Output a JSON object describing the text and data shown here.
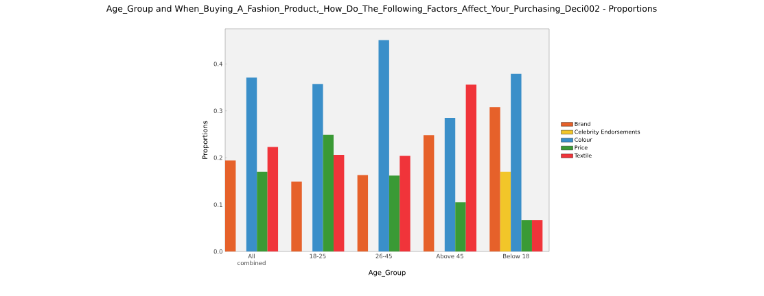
{
  "chart_data": {
    "type": "bar",
    "title": "Age_Group and When_Buying_A_Fashion_Product,_How_Do_The_Following_Factors_Affect_Your_Purchasing_Deci002 - Proportions",
    "xlabel": "Age_Group",
    "ylabel": "Proportions",
    "categories": [
      "All combined",
      "18-25",
      "26-45",
      "Above 45",
      "Below 18"
    ],
    "series": [
      {
        "name": "Brand",
        "color": "#e6612a",
        "values": [
          0.194,
          0.149,
          0.163,
          0.248,
          0.308
        ]
      },
      {
        "name": "Celebrity Endorsements",
        "color": "#f2c629",
        "values": [
          null,
          null,
          null,
          null,
          0.17
        ]
      },
      {
        "name": "Colour",
        "color": "#3a8fc9",
        "values": [
          0.371,
          0.357,
          0.451,
          0.285,
          0.379
        ]
      },
      {
        "name": "Price",
        "color": "#3a9a35",
        "values": [
          0.17,
          0.249,
          0.162,
          0.105,
          0.067
        ]
      },
      {
        "name": "Textile",
        "color": "#f0343a",
        "values": [
          0.223,
          0.206,
          0.204,
          0.356,
          0.067
        ]
      }
    ],
    "ylim": [
      0,
      0.475
    ],
    "yticks": [
      {
        "value": 0,
        "label": "0.0"
      },
      {
        "value": 0.1,
        "label": "0.1"
      },
      {
        "value": 0.2,
        "label": "0.2"
      },
      {
        "value": 0.3,
        "label": "0.3"
      },
      {
        "value": 0.4,
        "label": "0.4"
      }
    ],
    "legend": "right"
  }
}
